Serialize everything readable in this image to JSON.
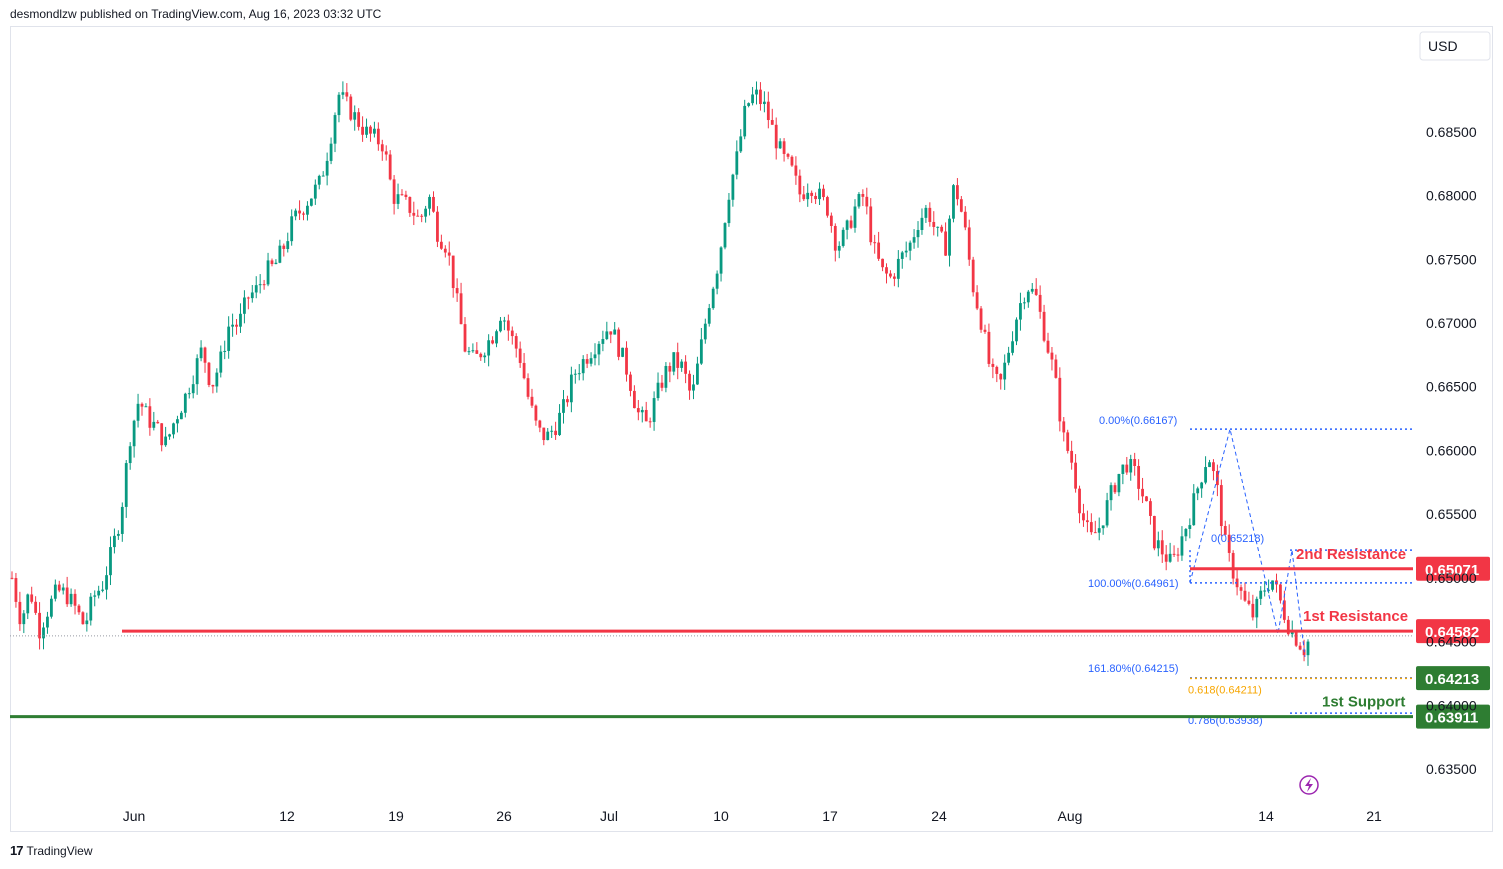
{
  "header": {
    "text": "desmondlzw published on TradingView.com, Aug 16, 2023 03:32 UTC"
  },
  "footer": {
    "brand": "TradingView",
    "logo_glyph": "17"
  },
  "currency": "USD",
  "colors": {
    "up": "#089981",
    "down": "#f23645",
    "resistance": "#f23645",
    "support": "#2e7d32",
    "fib": "#2962ff",
    "fib_gold": "#f7a600",
    "lightning": "#9c27b0"
  },
  "chart_data": {
    "type": "candlestick",
    "title": "",
    "ylim": [
      0.631,
      0.6915
    ],
    "y_ticks": [
      "0.68500",
      "0.68000",
      "0.67500",
      "0.67000",
      "0.66500",
      "0.66000",
      "0.65500",
      "0.65000",
      "0.64500",
      "0.64000",
      "0.63500"
    ],
    "x_ticks": [
      "Jun",
      "12",
      "19",
      "26",
      "Jul",
      "10",
      "17",
      "24",
      "Aug",
      "14",
      "21"
    ],
    "price_path": [
      0.65,
      0.6466,
      0.6491,
      0.6459,
      0.6476,
      0.649,
      0.6487,
      0.6476,
      0.6462,
      0.6485,
      0.6495,
      0.652,
      0.655,
      0.661,
      0.664,
      0.6625,
      0.6617,
      0.6605,
      0.6625,
      0.664,
      0.666,
      0.668,
      0.665,
      0.667,
      0.67,
      0.6698,
      0.672,
      0.6726,
      0.674,
      0.6745,
      0.676,
      0.678,
      0.679,
      0.68,
      0.681,
      0.684,
      0.688,
      0.687,
      0.686,
      0.685,
      0.6845,
      0.684,
      0.68,
      0.6795,
      0.679,
      0.678,
      0.68,
      0.677,
      0.676,
      0.672,
      0.668,
      0.667,
      0.668,
      0.669,
      0.671,
      0.669,
      0.6675,
      0.664,
      0.6615,
      0.661,
      0.662,
      0.6635,
      0.666,
      0.667,
      0.668,
      0.669,
      0.6698,
      0.668,
      0.666,
      0.663,
      0.662,
      0.664,
      0.666,
      0.667,
      0.6665,
      0.664,
      0.668,
      0.672,
      0.675,
      0.68,
      0.683,
      0.687,
      0.688,
      0.687,
      0.685,
      0.683,
      0.682,
      0.68,
      0.681,
      0.68,
      0.679,
      0.676,
      0.677,
      0.679,
      0.68,
      0.676,
      0.674,
      0.6735,
      0.675,
      0.676,
      0.678,
      0.679,
      0.677,
      0.676,
      0.681,
      0.678,
      0.673,
      0.67,
      0.666,
      0.665,
      0.668,
      0.671,
      0.673,
      0.672,
      0.669,
      0.666,
      0.661,
      0.659,
      0.655,
      0.653,
      0.654,
      0.656,
      0.658,
      0.659,
      0.658,
      0.656,
      0.653,
      0.652,
      0.651,
      0.653,
      0.655,
      0.6575,
      0.6598,
      0.6568,
      0.652,
      0.65,
      0.648,
      0.647,
      0.649,
      0.65,
      0.648,
      0.646,
      0.645,
      0.644
    ],
    "levels": [
      {
        "name": "2nd Resistance",
        "value": "0.65071"
      },
      {
        "name": "1st Resistance",
        "value": "0.64582"
      },
      {
        "name": "",
        "value": "0.64213"
      },
      {
        "name": "1st Support",
        "value": "0.63911"
      }
    ],
    "fib_labels": [
      {
        "text": "0.00%(0.66167)",
        "value": 0.66167
      },
      {
        "text": "100.00%(0.64961)",
        "value": 0.64961
      },
      {
        "text": "161.80%(0.64215)",
        "value": 0.64215
      },
      {
        "text": "0(0.65218)",
        "value": 0.65218
      },
      {
        "text": "0.618(0.64211)",
        "value": 0.64211
      },
      {
        "text": "0.786(0.63938)",
        "value": 0.63938
      }
    ],
    "last_price": 0.645
  }
}
